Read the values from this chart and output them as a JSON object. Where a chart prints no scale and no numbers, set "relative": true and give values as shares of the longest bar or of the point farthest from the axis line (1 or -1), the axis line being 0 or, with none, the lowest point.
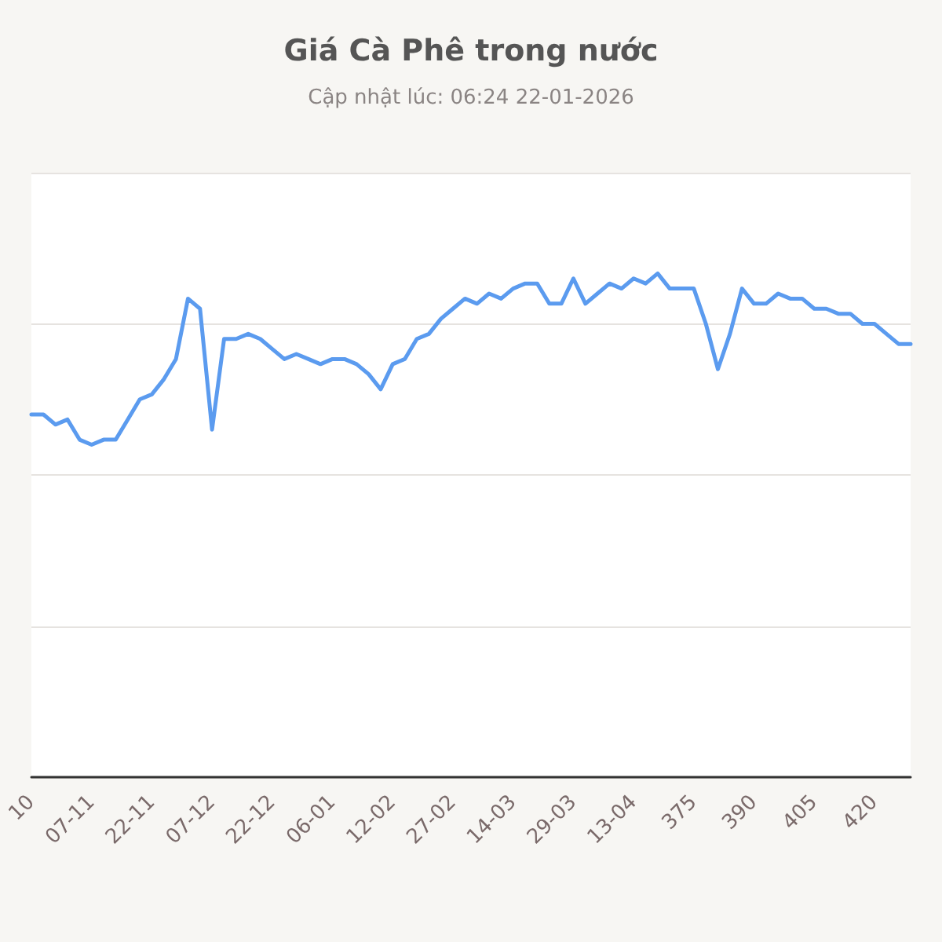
{
  "chart_data": {
    "type": "line",
    "title": "Giá Cà Phê trong nước",
    "subtitle": "Cập nhật lúc: 06:24 22-01-2026",
    "relative": true,
    "grid": "y",
    "marker": "none",
    "line_style": "solid",
    "categories": [
      "10",
      null,
      null,
      null,
      null,
      "07-11",
      null,
      null,
      null,
      null,
      "22-11",
      null,
      null,
      null,
      null,
      "07-12",
      null,
      null,
      null,
      null,
      "22-12",
      null,
      null,
      null,
      null,
      "06-01",
      null,
      null,
      null,
      null,
      "12-02",
      null,
      null,
      null,
      null,
      "27-02",
      null,
      null,
      null,
      null,
      "14-03",
      null,
      null,
      null,
      null,
      "29-03",
      null,
      null,
      null,
      null,
      "13-04",
      null,
      null,
      null,
      null,
      "375",
      null,
      null,
      null,
      null,
      "390",
      null,
      null,
      null,
      null,
      "405",
      null,
      null,
      null,
      null,
      "420",
      null,
      null,
      null
    ],
    "series": [
      {
        "color": "#5b9bef",
        "values": [
          0.72,
          0.72,
          0.7,
          0.71,
          0.67,
          0.66,
          0.67,
          0.67,
          0.71,
          0.75,
          0.76,
          0.79,
          0.83,
          0.95,
          0.93,
          0.69,
          0.87,
          0.87,
          0.88,
          0.87,
          0.85,
          0.83,
          0.84,
          0.83,
          0.82,
          0.83,
          0.83,
          0.82,
          0.8,
          0.77,
          0.82,
          0.83,
          0.87,
          0.88,
          0.91,
          0.93,
          0.95,
          0.94,
          0.96,
          0.95,
          0.97,
          0.98,
          0.98,
          0.94,
          0.94,
          0.99,
          0.94,
          0.96,
          0.98,
          0.97,
          0.99,
          0.98,
          1,
          0.97,
          0.97,
          0.97,
          0.9,
          0.81,
          0.88,
          0.97,
          0.94,
          0.94,
          0.96,
          0.95,
          0.95,
          0.93,
          0.93,
          0.92,
          0.92,
          0.9,
          0.9,
          0.88,
          0.86,
          0.86
        ]
      }
    ]
  }
}
